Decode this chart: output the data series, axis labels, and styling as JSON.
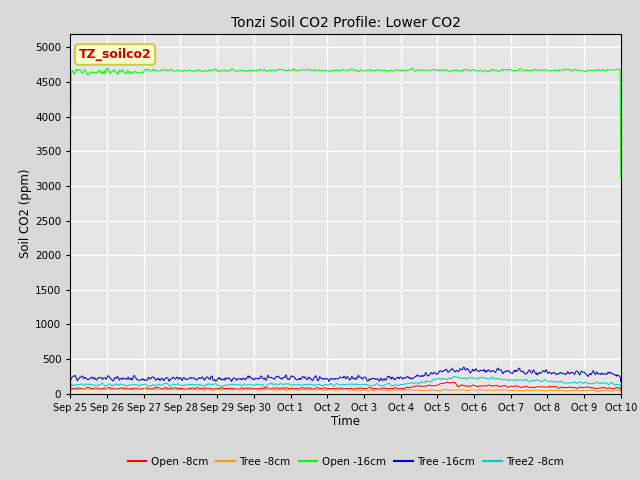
{
  "title": "Tonzi Soil CO2 Profile: Lower CO2",
  "xlabel": "Time",
  "ylabel": "Soil CO2 (ppm)",
  "ylim": [
    0,
    5200
  ],
  "yticks": [
    0,
    500,
    1000,
    1500,
    2000,
    2500,
    3000,
    3500,
    4000,
    4500,
    5000
  ],
  "background_color": "#d8d8d8",
  "plot_bg_color": "#e6e6e6",
  "annotation_text": "TZ_soilco2",
  "annotation_bg": "#ffffcc",
  "annotation_border": "#cccc44",
  "annotation_text_color": "#cc0000",
  "series": {
    "open_8cm": {
      "label": "Open -8cm",
      "color": "#ff0000"
    },
    "tree_8cm": {
      "label": "Tree -8cm",
      "color": "#ff9900"
    },
    "open_16cm": {
      "label": "Open -16cm",
      "color": "#00ff00"
    },
    "tree_16cm": {
      "label": "Tree -16cm",
      "color": "#0000cc"
    },
    "tree2_8cm": {
      "label": "Tree2 -8cm",
      "color": "#00cccc"
    }
  },
  "n_points": 800,
  "x_start_days": 0,
  "x_end_days": 15,
  "xtick_labels": [
    "Sep 25",
    "Sep 26",
    "Sep 27",
    "Sep 28",
    "Sep 29",
    "Sep 30",
    "Oct 1",
    "Oct 2",
    "Oct 3",
    "Oct 4",
    "Oct 5",
    "Oct 6",
    "Oct 7",
    "Oct 8",
    "Oct 9",
    "Oct 10"
  ],
  "xtick_positions": [
    0,
    1,
    2,
    3,
    4,
    5,
    6,
    7,
    8,
    9,
    10,
    11,
    12,
    13,
    14,
    15
  ]
}
